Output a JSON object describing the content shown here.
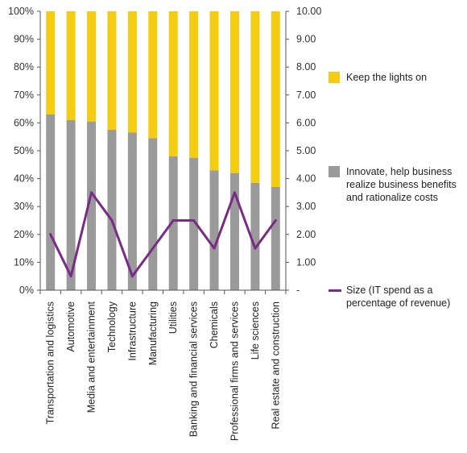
{
  "colors": {
    "keep": "#f4cc12",
    "innovate": "#9a9a9a",
    "size": "#7a2a87",
    "axis": "#555555"
  },
  "chart_data": {
    "type": "bar",
    "stacked": true,
    "percent_axis": true,
    "categories": [
      "Transportation and logistics",
      "Automotive",
      "Media and entertainment",
      "Technology",
      "Infrastructure",
      "Manufacturing",
      "Utilities",
      "Banking and financial services",
      "Chemicals",
      "Professional firms and services",
      "Life sciences",
      "Real estate and construction"
    ],
    "series": [
      {
        "name": "Innovate, help business realize business benefits and rationalize costs",
        "values": [
          63,
          61,
          60.5,
          57.5,
          56.5,
          54.5,
          48,
          47.5,
          43,
          42,
          38.5,
          37
        ],
        "axis": "left",
        "kind": "bar",
        "color": "#9a9a9a"
      },
      {
        "name": "Keep the lights on",
        "values": [
          37,
          39,
          39.5,
          42.5,
          43.5,
          45.5,
          52,
          52.5,
          57,
          58,
          61.5,
          63
        ],
        "axis": "left",
        "kind": "bar",
        "color": "#f4cc12"
      },
      {
        "name": "Size (IT spend as a percentage of revenue)",
        "values": [
          2.0,
          0.5,
          3.5,
          2.5,
          0.5,
          1.5,
          2.5,
          2.5,
          1.5,
          3.5,
          1.5,
          2.5
        ],
        "axis": "right",
        "kind": "line",
        "color": "#7a2a87"
      }
    ],
    "left_axis": {
      "ticks": [
        "0%",
        "10%",
        "20%",
        "30%",
        "40%",
        "50%",
        "60%",
        "70%",
        "80%",
        "90%",
        "100%"
      ],
      "ylim": [
        0,
        100
      ]
    },
    "right_axis": {
      "ticks": [
        "-",
        "1.00",
        "2.00",
        "3.00",
        "4.00",
        "5.00",
        "6.00",
        "7.00",
        "8.00",
        "9.00",
        "10.00"
      ],
      "ylim": [
        0,
        10
      ]
    },
    "legend_position": "right",
    "grid": false
  },
  "legend": {
    "keep_label": "Keep the lights on",
    "innovate_label": "Innovate, help business realize business benefits and rationalize costs",
    "size_label": "Size (IT spend as a percentage of revenue)"
  }
}
